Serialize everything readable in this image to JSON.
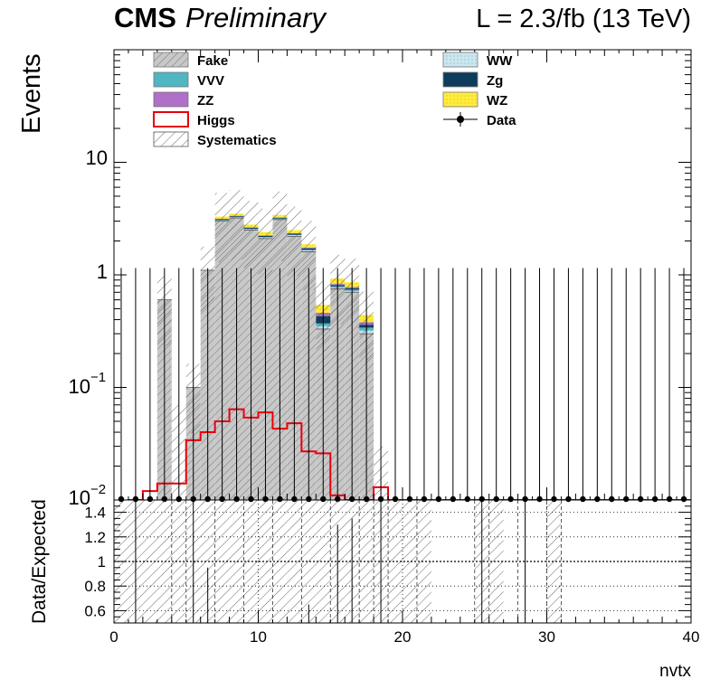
{
  "header": {
    "cms": "CMS",
    "preliminary": "Preliminary",
    "lumi": "L = 2.3/fb (13 TeV)"
  },
  "axes": {
    "ylabel_top": "Events",
    "ylabel_bottom": "Data/Expected",
    "xlabel": "nvtx",
    "y_tick_main_1": "10",
    "y_tick_main_2": "1",
    "y_tick_main_3_base": "10",
    "y_tick_main_3_exp": "−1",
    "y_tick_main_4_base": "10",
    "y_tick_main_4_exp": "−2",
    "ratio_ticks": [
      "1.4",
      "1.2",
      "1",
      "0.8",
      "0.6"
    ],
    "x_ticks": [
      "0",
      "10",
      "20",
      "30",
      "40"
    ]
  },
  "legend": [
    {
      "label": "Fake",
      "color": "#c8c8c8",
      "style": "hatch-fill"
    },
    {
      "label": "WW",
      "color": "#cce6ee",
      "style": "fill"
    },
    {
      "label": "VVV",
      "color": "#4fb6c2",
      "style": "fill"
    },
    {
      "label": "Zg",
      "color": "#0d3c5c",
      "style": "fill"
    },
    {
      "label": "ZZ",
      "color": "#b06fc8",
      "style": "fill"
    },
    {
      "label": "WZ",
      "color": "#ffec40",
      "style": "fill"
    },
    {
      "label": "Higgs",
      "color": "#e8000b",
      "style": "line"
    },
    {
      "label": "Data",
      "color": "#000000",
      "style": "marker"
    },
    {
      "label": "Systematics",
      "color": "#555555",
      "style": "hatch"
    }
  ],
  "chart_data": {
    "type": "bar",
    "stacked": true,
    "x_range": [
      0,
      40
    ],
    "bin_width": 1,
    "y_scale": "log",
    "ylim": [
      0.01,
      100
    ],
    "ratio_ylim": [
      0.5,
      1.5
    ],
    "bins_center": [
      0.5,
      1.5,
      2.5,
      3.5,
      4.5,
      5.5,
      6.5,
      7.5,
      8.5,
      9.5,
      10.5,
      11.5,
      12.5,
      13.5,
      14.5,
      15.5,
      16.5,
      17.5,
      18.5,
      19.5,
      20.5,
      21.5,
      22.5,
      23.5,
      24.5,
      25.5,
      26.5,
      27.5,
      28.5,
      29.5,
      30.5,
      31.5,
      32.5,
      33.5,
      34.5,
      35.5,
      36.5,
      37.5,
      38.5,
      39.5
    ],
    "series": [
      {
        "name": "Fake",
        "values": [
          0,
          0,
          0,
          0.6,
          0,
          0.1,
          1.1,
          3.0,
          3.2,
          2.5,
          2.1,
          3.1,
          2.2,
          1.6,
          0.33,
          0.75,
          0.7,
          0.3,
          0,
          0,
          0,
          0,
          0,
          0,
          0,
          0,
          0,
          0,
          0,
          0,
          0,
          0,
          0,
          0,
          0,
          0,
          0,
          0,
          0,
          0
        ]
      },
      {
        "name": "WW",
        "values": [
          0,
          0,
          0,
          0,
          0,
          0,
          0,
          0.05,
          0.05,
          0.05,
          0.05,
          0.05,
          0.05,
          0.05,
          0.02,
          0.02,
          0.02,
          0.02,
          0,
          0,
          0,
          0,
          0,
          0,
          0,
          0,
          0,
          0,
          0,
          0,
          0,
          0,
          0,
          0,
          0,
          0,
          0,
          0,
          0,
          0
        ]
      },
      {
        "name": "VVV",
        "values": [
          0,
          0,
          0,
          0,
          0,
          0,
          0,
          0.02,
          0.02,
          0.02,
          0.02,
          0.02,
          0.02,
          0.02,
          0.02,
          0.02,
          0.02,
          0.02,
          0,
          0,
          0,
          0,
          0,
          0,
          0,
          0,
          0,
          0,
          0,
          0,
          0,
          0,
          0,
          0,
          0,
          0,
          0,
          0,
          0,
          0
        ]
      },
      {
        "name": "Zg",
        "values": [
          0,
          0,
          0,
          0,
          0,
          0,
          0,
          0.05,
          0.05,
          0.05,
          0.05,
          0.05,
          0.05,
          0.05,
          0.06,
          0.02,
          0.02,
          0.02,
          0,
          0,
          0,
          0,
          0,
          0,
          0,
          0,
          0,
          0,
          0,
          0,
          0,
          0,
          0,
          0,
          0,
          0,
          0,
          0,
          0,
          0
        ]
      },
      {
        "name": "ZZ",
        "values": [
          0,
          0,
          0,
          0,
          0,
          0,
          0,
          0.03,
          0.03,
          0.03,
          0.03,
          0.03,
          0.03,
          0.03,
          0.03,
          0.02,
          0.02,
          0.02,
          0,
          0,
          0,
          0,
          0,
          0,
          0,
          0,
          0,
          0,
          0,
          0,
          0,
          0,
          0,
          0,
          0,
          0,
          0,
          0,
          0,
          0
        ]
      },
      {
        "name": "WZ",
        "values": [
          0,
          0,
          0,
          0,
          0,
          0,
          0,
          0.15,
          0.15,
          0.15,
          0.15,
          0.15,
          0.15,
          0.12,
          0.08,
          0.1,
          0.08,
          0.06,
          0,
          0,
          0,
          0,
          0,
          0,
          0,
          0,
          0,
          0,
          0,
          0,
          0,
          0,
          0,
          0,
          0,
          0,
          0,
          0,
          0,
          0
        ]
      }
    ],
    "higgs": [
      0,
      0.01,
      0.012,
      0.014,
      0.014,
      0.034,
      0.04,
      0.05,
      0.064,
      0.054,
      0.06,
      0.043,
      0.048,
      0.027,
      0.026,
      0.011,
      0.01,
      0.01,
      0.013,
      0.01,
      0.01,
      0.01,
      0.01,
      0.01,
      0.01,
      0.01,
      0.01,
      0.01,
      0.01,
      0.01,
      0.01,
      0.01,
      0.01,
      0.01,
      0.01,
      0.01,
      0.01,
      0.01,
      0.01,
      0.01
    ],
    "data": [
      0,
      0,
      0,
      0,
      0,
      0,
      0,
      0,
      0,
      0,
      0,
      0,
      0,
      0,
      0,
      0,
      0,
      0,
      0,
      0,
      0,
      0,
      0,
      0,
      0,
      0,
      0,
      0,
      0,
      0,
      0,
      0,
      0,
      0,
      0,
      0,
      0,
      0,
      0,
      0
    ],
    "data_err_up": [
      1.15,
      1.15,
      1.15,
      1.15,
      1.15,
      1.15,
      1.15,
      1.15,
      1.15,
      1.15,
      1.15,
      1.15,
      1.15,
      1.15,
      1.15,
      1.15,
      1.15,
      1.15,
      1.15,
      1.15,
      1.15,
      1.15,
      1.15,
      1.15,
      1.15,
      1.15,
      1.15,
      1.15,
      1.15,
      1.15,
      1.15,
      1.15,
      1.15,
      1.15,
      1.15,
      1.15,
      1.15,
      1.15,
      1.15,
      1.15
    ],
    "syst_rel": 0.35,
    "ratio_data_marks": [
      0.95,
      0.65,
      1.3,
      1.35
    ]
  }
}
